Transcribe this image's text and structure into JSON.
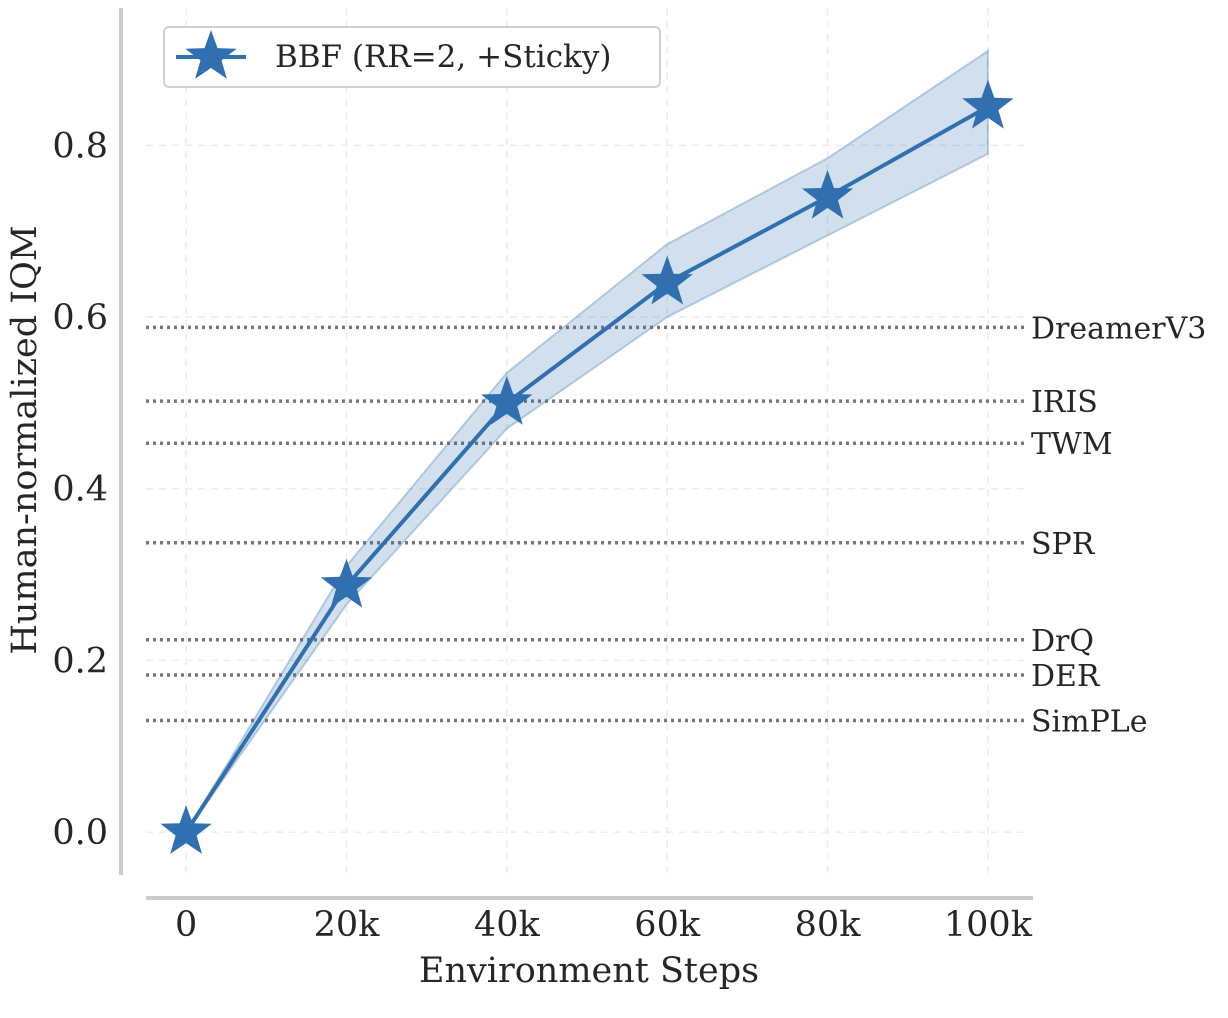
{
  "chart_data": {
    "type": "line",
    "title": "",
    "xlabel": "Environment Steps",
    "ylabel": "Human-normalized IQM",
    "x": [
      0,
      20000,
      40000,
      60000,
      80000,
      100000
    ],
    "x_ticks": [
      {
        "value": 0,
        "label": "0"
      },
      {
        "value": 20000,
        "label": "20k"
      },
      {
        "value": 40000,
        "label": "40k"
      },
      {
        "value": 60000,
        "label": "60k"
      },
      {
        "value": 80000,
        "label": "80k"
      },
      {
        "value": 100000,
        "label": "100k"
      }
    ],
    "y_ticks": [
      {
        "value": 0.0,
        "label": "0.0"
      },
      {
        "value": 0.2,
        "label": "0.2"
      },
      {
        "value": 0.4,
        "label": "0.4"
      },
      {
        "value": 0.6,
        "label": "0.6"
      },
      {
        "value": 0.8,
        "label": "0.8"
      }
    ],
    "xlim": [
      -5000,
      105000
    ],
    "ylim": [
      -0.05,
      0.96
    ],
    "grid": true,
    "legend_position": "top-left",
    "series": [
      {
        "name": "BBF (RR=2, +Sticky)",
        "color": "#3070b0",
        "marker": "star",
        "values": [
          0.0,
          0.287,
          0.5,
          0.64,
          0.74,
          0.845
        ],
        "ci_lower": [
          0.0,
          0.265,
          0.47,
          0.6,
          0.695,
          0.79
        ],
        "ci_upper": [
          0.0,
          0.31,
          0.535,
          0.685,
          0.785,
          0.91
        ]
      }
    ],
    "baselines": [
      {
        "label": "DreamerV3",
        "value": 0.588
      },
      {
        "label": "IRIS",
        "value": 0.502
      },
      {
        "label": "TWM",
        "value": 0.453
      },
      {
        "label": "SPR",
        "value": 0.337
      },
      {
        "label": "DrQ",
        "value": 0.224
      },
      {
        "label": "DER",
        "value": 0.183
      },
      {
        "label": "SimPLe",
        "value": 0.13
      }
    ]
  }
}
